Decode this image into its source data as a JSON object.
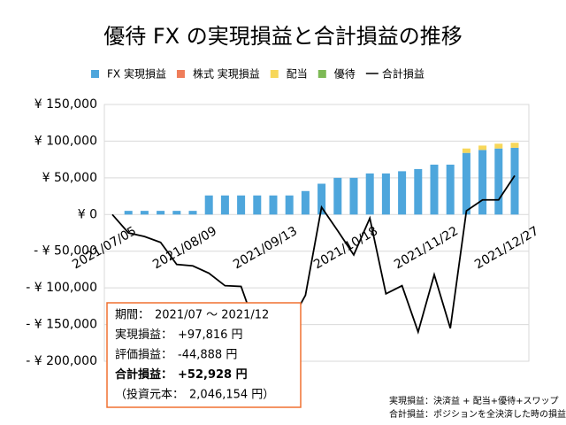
{
  "chart_data": {
    "type": "bar",
    "title": "優待 FX の実現損益と合計損益の推移",
    "categories": [
      "2021/07/05",
      null,
      null,
      null,
      null,
      "2021/08/09",
      null,
      null,
      null,
      null,
      "2021/09/13",
      null,
      null,
      null,
      null,
      "2021/10/18",
      null,
      null,
      null,
      null,
      "2021/11/22",
      null,
      null,
      null,
      null,
      "2021/12/27"
    ],
    "series": [
      {
        "name": "FX 実現損益",
        "color": "#4ea6dc",
        "type": "bar",
        "values": [
          0,
          5000,
          5000,
          5000,
          5000,
          5000,
          26000,
          26000,
          26000,
          26000,
          26000,
          26000,
          32000,
          42000,
          50000,
          50000,
          56000,
          56000,
          59000,
          62000,
          68000,
          68000,
          84000,
          88000,
          90000,
          91000
        ]
      },
      {
        "name": "株式 実現損益",
        "color": "#ef7d5a",
        "type": "bar",
        "values": [
          0,
          0,
          0,
          0,
          0,
          0,
          0,
          0,
          0,
          0,
          0,
          0,
          0,
          0,
          0,
          0,
          0,
          0,
          0,
          0,
          0,
          0,
          0,
          0,
          0,
          0
        ]
      },
      {
        "name": "配当",
        "color": "#f7d75a",
        "type": "bar",
        "values": [
          0,
          0,
          0,
          0,
          0,
          0,
          0,
          0,
          0,
          0,
          0,
          0,
          0,
          0,
          0,
          0,
          0,
          0,
          0,
          0,
          0,
          0,
          6000,
          6000,
          6500,
          6816
        ]
      },
      {
        "name": "優待",
        "color": "#7db955",
        "type": "bar",
        "values": [
          0,
          0,
          0,
          0,
          0,
          0,
          0,
          0,
          0,
          0,
          0,
          0,
          0,
          0,
          0,
          0,
          0,
          0,
          0,
          0,
          0,
          0,
          0,
          0,
          0,
          0
        ]
      },
      {
        "name": "合計損益",
        "color": "#000000",
        "type": "line",
        "values": [
          0,
          -25000,
          -30000,
          -38000,
          -68000,
          -70000,
          -80000,
          -97000,
          -98000,
          -160000,
          -170000,
          -150000,
          -110000,
          10000,
          -22000,
          -55000,
          -5000,
          -108000,
          -97000,
          -160000,
          -82000,
          -155000,
          5000,
          20000,
          20000,
          52928
        ]
      }
    ],
    "ylim": [
      -200000,
      150000
    ],
    "yticks": [
      {
        "value": -200000,
        "label": "- ¥ 200,000"
      },
      {
        "value": -150000,
        "label": "- ¥ 150,000"
      },
      {
        "value": -100000,
        "label": "- ¥ 100,000"
      },
      {
        "value": -50000,
        "label": "- ¥ 50,000"
      },
      {
        "value": 0,
        "label": "¥ 0"
      },
      {
        "value": 50000,
        "label": "¥ 50,000"
      },
      {
        "value": 100000,
        "label": "¥ 100,000"
      },
      {
        "value": 150000,
        "label": "¥ 150,000"
      }
    ],
    "grid": true,
    "info_box": [
      {
        "label": "期間：",
        "text": "2021/07 〜 2021/12"
      },
      {
        "label": "実現損益：",
        "text": "+97,816 円"
      },
      {
        "label": "評価損益：",
        "text": "-44,888 円"
      },
      {
        "label": "合計損益：",
        "text": "+52,928 円"
      },
      {
        "label": "（投資元本：",
        "text": "2,046,154 円）"
      }
    ],
    "notes": [
      "実現損益：決済益 + 配当+優待+スワップ",
      "合計損益：ポジションを全決済した時の損益"
    ]
  }
}
